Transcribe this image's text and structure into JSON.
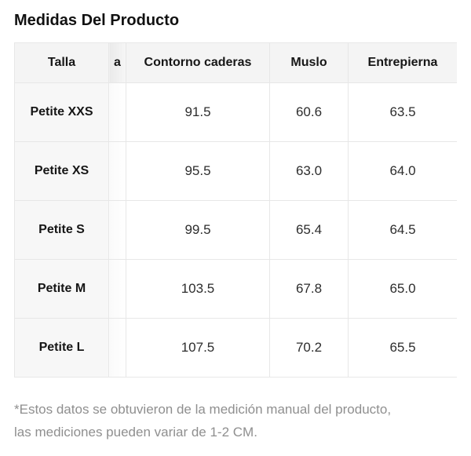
{
  "page": {
    "title": "Medidas Del Producto"
  },
  "table": {
    "columns": [
      {
        "key": "talla",
        "label": "Talla"
      },
      {
        "key": "truncated",
        "label": "a",
        "note": "partially visible column cut off by horizontal scroll"
      },
      {
        "key": "caderas",
        "label": "Contorno caderas"
      },
      {
        "key": "muslo",
        "label": "Muslo"
      },
      {
        "key": "entrepierna",
        "label": "Entrepierna"
      }
    ],
    "rows": [
      {
        "talla": "Petite XXS",
        "truncated": "",
        "caderas": "91.5",
        "muslo": "60.6",
        "entrepierna": "63.5"
      },
      {
        "talla": "Petite XS",
        "truncated": "",
        "caderas": "95.5",
        "muslo": "63.0",
        "entrepierna": "64.0"
      },
      {
        "talla": "Petite S",
        "truncated": "",
        "caderas": "99.5",
        "muslo": "65.4",
        "entrepierna": "64.5"
      },
      {
        "talla": "Petite M",
        "truncated": "",
        "caderas": "103.5",
        "muslo": "67.8",
        "entrepierna": "65.0"
      },
      {
        "talla": "Petite L",
        "truncated": "",
        "caderas": "107.5",
        "muslo": "70.2",
        "entrepierna": "65.5"
      }
    ]
  },
  "footnote": {
    "line1": "*Estos datos se obtuvieron de la medición manual del producto,",
    "line2": "las mediciones pueden variar de 1-2 CM."
  },
  "colors": {
    "header_background": "#f4f4f4",
    "size_column_background": "#f7f7f7",
    "border": "#e7e7e7",
    "title_text": "#111111",
    "cell_text": "#2d2d2d",
    "footnote_text": "#8f8f8f",
    "bottom_divider": "#e4e4e4"
  }
}
